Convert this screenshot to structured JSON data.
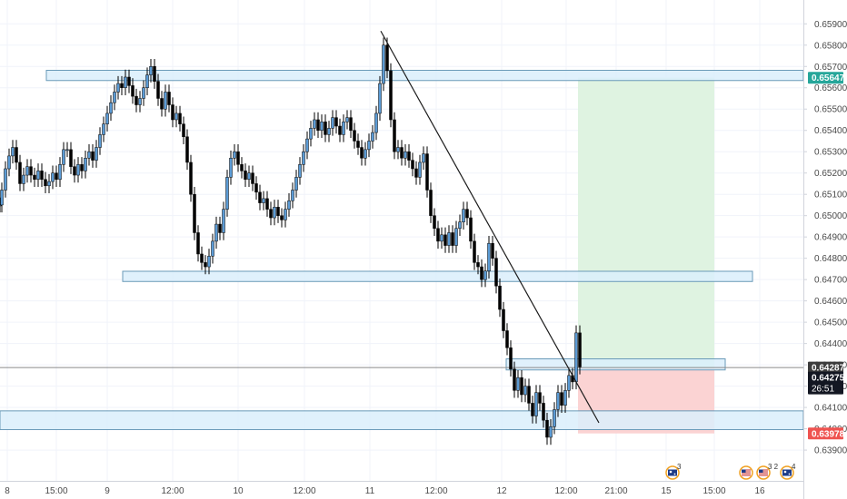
{
  "chart_data": {
    "type": "candlestick",
    "y_axis": {
      "ylim": [
        0.63862,
        0.65948
      ],
      "ticks": [
        "0.65900",
        "0.65800",
        "0.65700",
        "0.65600",
        "0.65500",
        "0.65400",
        "0.65300",
        "0.65200",
        "0.65100",
        "0.65000",
        "0.64900",
        "0.64800",
        "0.64700",
        "0.64600",
        "0.64500",
        "0.64400",
        "0.64300",
        "0.64200",
        "0.64100",
        "0.64000",
        "0.63900"
      ]
    },
    "x_axis": {
      "ticks": [
        "8",
        "15:00",
        "9",
        "12:00",
        "10",
        "12:00",
        "11",
        "12:00",
        "12",
        "12:00",
        "21:00",
        "15",
        "15:00",
        "16"
      ]
    },
    "candles": [
      {
        "x": 0,
        "y": 0.6505
      },
      {
        "x": 2,
        "y": 0.6512
      },
      {
        "x": 6,
        "y": 0.6522
      },
      {
        "x": 10,
        "y": 0.6528
      },
      {
        "x": 14,
        "y": 0.6532
      },
      {
        "x": 18,
        "y": 0.6525
      },
      {
        "x": 22,
        "y": 0.6515
      },
      {
        "x": 26,
        "y": 0.6519
      },
      {
        "x": 30,
        "y": 0.6523
      },
      {
        "x": 34,
        "y": 0.6519
      },
      {
        "x": 38,
        "y": 0.6517
      },
      {
        "x": 42,
        "y": 0.6521
      },
      {
        "x": 46,
        "y": 0.6517
      },
      {
        "x": 50,
        "y": 0.6514
      },
      {
        "x": 54,
        "y": 0.6516
      },
      {
        "x": 58,
        "y": 0.652
      },
      {
        "x": 62,
        "y": 0.6517
      },
      {
        "x": 66,
        "y": 0.6524
      },
      {
        "x": 70,
        "y": 0.6531
      },
      {
        "x": 74,
        "y": 0.6531
      },
      {
        "x": 78,
        "y": 0.6523
      },
      {
        "x": 82,
        "y": 0.6519
      },
      {
        "x": 86,
        "y": 0.6524
      },
      {
        "x": 90,
        "y": 0.6521
      },
      {
        "x": 94,
        "y": 0.6527
      },
      {
        "x": 98,
        "y": 0.653
      },
      {
        "x": 102,
        "y": 0.6526
      },
      {
        "x": 106,
        "y": 0.6532
      },
      {
        "x": 110,
        "y": 0.6538
      },
      {
        "x": 114,
        "y": 0.6543
      },
      {
        "x": 118,
        "y": 0.6548
      },
      {
        "x": 122,
        "y": 0.6553
      },
      {
        "x": 126,
        "y": 0.6558
      },
      {
        "x": 130,
        "y": 0.6562
      },
      {
        "x": 134,
        "y": 0.656
      },
      {
        "x": 138,
        "y": 0.6565
      },
      {
        "x": 142,
        "y": 0.6561
      },
      {
        "x": 146,
        "y": 0.6556
      },
      {
        "x": 150,
        "y": 0.6552
      },
      {
        "x": 154,
        "y": 0.6555
      },
      {
        "x": 158,
        "y": 0.656
      },
      {
        "x": 162,
        "y": 0.6566
      },
      {
        "x": 166,
        "y": 0.657
      },
      {
        "x": 170,
        "y": 0.6563
      },
      {
        "x": 174,
        "y": 0.6555
      },
      {
        "x": 178,
        "y": 0.655
      },
      {
        "x": 182,
        "y": 0.6558
      },
      {
        "x": 186,
        "y": 0.6552
      },
      {
        "x": 190,
        "y": 0.6545
      },
      {
        "x": 194,
        "y": 0.6548
      },
      {
        "x": 198,
        "y": 0.6543
      },
      {
        "x": 202,
        "y": 0.6537
      },
      {
        "x": 206,
        "y": 0.6525
      },
      {
        "x": 210,
        "y": 0.651
      },
      {
        "x": 214,
        "y": 0.6492
      },
      {
        "x": 218,
        "y": 0.6482
      },
      {
        "x": 222,
        "y": 0.6478
      },
      {
        "x": 226,
        "y": 0.6476
      },
      {
        "x": 230,
        "y": 0.6481
      },
      {
        "x": 234,
        "y": 0.6488
      },
      {
        "x": 238,
        "y": 0.6496
      },
      {
        "x": 242,
        "y": 0.6492
      },
      {
        "x": 246,
        "y": 0.6503
      },
      {
        "x": 250,
        "y": 0.6518
      },
      {
        "x": 254,
        "y": 0.6527
      },
      {
        "x": 258,
        "y": 0.653
      },
      {
        "x": 262,
        "y": 0.6524
      },
      {
        "x": 266,
        "y": 0.6521
      },
      {
        "x": 270,
        "y": 0.6517
      },
      {
        "x": 274,
        "y": 0.652
      },
      {
        "x": 278,
        "y": 0.6515
      },
      {
        "x": 282,
        "y": 0.6511
      },
      {
        "x": 286,
        "y": 0.6506
      },
      {
        "x": 290,
        "y": 0.6508
      },
      {
        "x": 294,
        "y": 0.6503
      },
      {
        "x": 298,
        "y": 0.6499
      },
      {
        "x": 302,
        "y": 0.6504
      },
      {
        "x": 306,
        "y": 0.65
      },
      {
        "x": 310,
        "y": 0.6498
      },
      {
        "x": 314,
        "y": 0.6503
      },
      {
        "x": 318,
        "y": 0.6507
      },
      {
        "x": 322,
        "y": 0.6512
      },
      {
        "x": 326,
        "y": 0.6518
      },
      {
        "x": 330,
        "y": 0.6524
      },
      {
        "x": 334,
        "y": 0.653
      },
      {
        "x": 338,
        "y": 0.6536
      },
      {
        "x": 342,
        "y": 0.6541
      },
      {
        "x": 346,
        "y": 0.6545
      },
      {
        "x": 350,
        "y": 0.654
      },
      {
        "x": 354,
        "y": 0.6544
      },
      {
        "x": 358,
        "y": 0.6538
      },
      {
        "x": 362,
        "y": 0.6541
      },
      {
        "x": 366,
        "y": 0.6546
      },
      {
        "x": 370,
        "y": 0.6542
      },
      {
        "x": 374,
        "y": 0.6538
      },
      {
        "x": 378,
        "y": 0.6544
      },
      {
        "x": 382,
        "y": 0.6546
      },
      {
        "x": 386,
        "y": 0.654
      },
      {
        "x": 390,
        "y": 0.6535
      },
      {
        "x": 394,
        "y": 0.6532
      },
      {
        "x": 398,
        "y": 0.6527
      },
      {
        "x": 402,
        "y": 0.6531
      },
      {
        "x": 406,
        "y": 0.6535
      },
      {
        "x": 410,
        "y": 0.6539
      },
      {
        "x": 414,
        "y": 0.6548
      },
      {
        "x": 418,
        "y": 0.6562
      },
      {
        "x": 422,
        "y": 0.658
      },
      {
        "x": 426,
        "y": 0.6568
      },
      {
        "x": 430,
        "y": 0.6545
      },
      {
        "x": 434,
        "y": 0.653
      },
      {
        "x": 438,
        "y": 0.6532
      },
      {
        "x": 442,
        "y": 0.6527
      },
      {
        "x": 446,
        "y": 0.653
      },
      {
        "x": 450,
        "y": 0.6526
      },
      {
        "x": 454,
        "y": 0.6522
      },
      {
        "x": 458,
        "y": 0.6518
      },
      {
        "x": 462,
        "y": 0.6525
      },
      {
        "x": 466,
        "y": 0.6529
      },
      {
        "x": 470,
        "y": 0.6512
      },
      {
        "x": 474,
        "y": 0.65
      },
      {
        "x": 478,
        "y": 0.6494
      },
      {
        "x": 482,
        "y": 0.6488
      },
      {
        "x": 486,
        "y": 0.6491
      },
      {
        "x": 490,
        "y": 0.6486
      },
      {
        "x": 494,
        "y": 0.6492
      },
      {
        "x": 498,
        "y": 0.6486
      },
      {
        "x": 502,
        "y": 0.6494
      },
      {
        "x": 506,
        "y": 0.6497
      },
      {
        "x": 510,
        "y": 0.6503
      },
      {
        "x": 514,
        "y": 0.6499
      },
      {
        "x": 518,
        "y": 0.6488
      },
      {
        "x": 522,
        "y": 0.6478
      },
      {
        "x": 526,
        "y": 0.6476
      },
      {
        "x": 530,
        "y": 0.647
      },
      {
        "x": 534,
        "y": 0.6474
      },
      {
        "x": 538,
        "y": 0.6487
      },
      {
        "x": 542,
        "y": 0.648
      },
      {
        "x": 546,
        "y": 0.6467
      },
      {
        "x": 550,
        "y": 0.6456
      },
      {
        "x": 554,
        "y": 0.6446
      },
      {
        "x": 558,
        "y": 0.6438
      },
      {
        "x": 562,
        "y": 0.6428
      },
      {
        "x": 566,
        "y": 0.6418
      },
      {
        "x": 570,
        "y": 0.6424
      },
      {
        "x": 574,
        "y": 0.6416
      },
      {
        "x": 578,
        "y": 0.642
      },
      {
        "x": 582,
        "y": 0.6412
      },
      {
        "x": 586,
        "y": 0.6406
      },
      {
        "x": 590,
        "y": 0.6417
      },
      {
        "x": 594,
        "y": 0.6412
      },
      {
        "x": 598,
        "y": 0.6404
      },
      {
        "x": 602,
        "y": 0.6396
      },
      {
        "x": 606,
        "y": 0.6401
      },
      {
        "x": 610,
        "y": 0.6409
      },
      {
        "x": 614,
        "y": 0.6417
      },
      {
        "x": 618,
        "y": 0.6411
      },
      {
        "x": 622,
        "y": 0.6418
      },
      {
        "x": 626,
        "y": 0.6425
      },
      {
        "x": 630,
        "y": 0.6422
      },
      {
        "x": 634,
        "y": 0.6445
      },
      {
        "x": 638,
        "y": 0.6429
      }
    ],
    "zones": [
      {
        "name": "resistance",
        "y_low": 0.65634,
        "y_high": 0.65682
      },
      {
        "name": "support-mid",
        "y_low": 0.64691,
        "y_high": 0.64739
      },
      {
        "name": "entry",
        "y_low": 0.64276,
        "y_high": 0.64328
      },
      {
        "name": "support-low",
        "y_low": 0.63996,
        "y_high": 0.64084
      }
    ],
    "position": {
      "entry": 0.64287,
      "target": 0.65647,
      "stop": 0.63978
    },
    "trendline": {
      "from": 0.65866,
      "to": 0.64028
    },
    "horizontal_line": 0.64287,
    "price_tags": [
      {
        "label": "0.65647",
        "color": "#26a69a"
      },
      {
        "label": "0.64287",
        "color": "#3c3c3c"
      },
      {
        "label": "0.64275",
        "color": "#131722"
      },
      {
        "label": "26:51",
        "color": "#131722"
      },
      {
        "label": "0.63978",
        "color": "#ef5350"
      }
    ],
    "events": [
      {
        "icon": "au-flag-icon",
        "count": "3"
      },
      {
        "icon": "us-flag-icon",
        "count": ""
      },
      {
        "icon": "us-flag-icon",
        "count": "3 2"
      },
      {
        "icon": "au-flag-icon",
        "count": "4"
      }
    ],
    "colors": {
      "up_body": "#5b9bd5",
      "down_body": "#000000",
      "zone_fill": "#dbeefc",
      "zone_stroke": "#6a9ab8",
      "profit": "#dff3e1",
      "loss": "#fbd3d3"
    }
  }
}
